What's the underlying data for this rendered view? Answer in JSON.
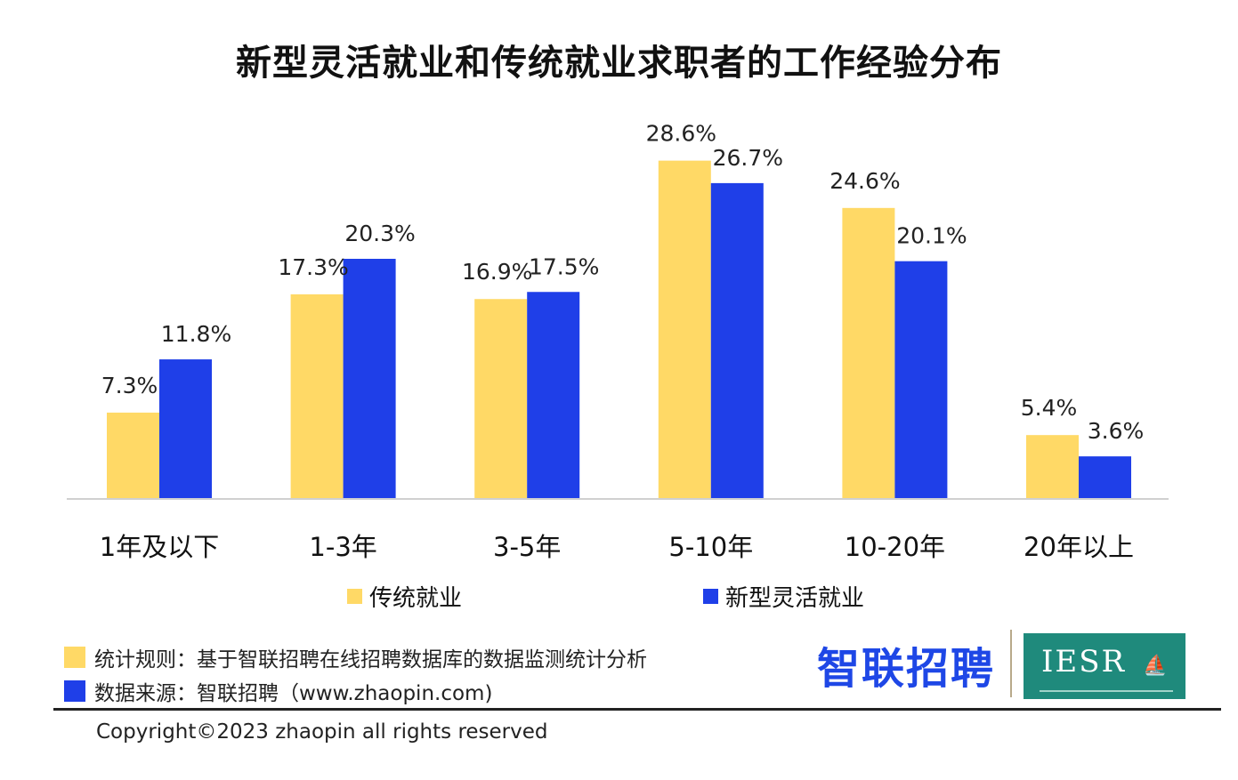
{
  "chart_data": {
    "type": "bar",
    "title": "新型灵活就业和传统就业求职者的工作经验分布",
    "categories": [
      "1年及以下",
      "1-3年",
      "3-5年",
      "5-10年",
      "10-20年",
      "20年以上"
    ],
    "series": [
      {
        "name": "传统就业",
        "color": "#FFD966",
        "values": [
          7.3,
          17.3,
          16.9,
          28.6,
          24.6,
          5.4
        ],
        "labels": [
          "7.3%",
          "17.3%",
          "16.9%",
          "28.6%",
          "24.6%",
          "5.4%"
        ]
      },
      {
        "name": "新型灵活就业",
        "color": "#1F3FE8",
        "values": [
          11.8,
          20.3,
          17.5,
          26.7,
          20.1,
          3.6
        ],
        "labels": [
          "11.8%",
          "20.3%",
          "17.5%",
          "26.7%",
          "20.1%",
          "3.6%"
        ]
      }
    ],
    "xlabel": "",
    "ylabel": "",
    "ylim": [
      0,
      30
    ],
    "grid": false,
    "legend": "bottom-center"
  },
  "notes": {
    "rule_label": "统计规则：基于智联招聘在线招聘数据库的数据监测统计分析",
    "rule_color": "#FFD966",
    "source_label": "数据来源：智联招聘（www.zhaopin.com)",
    "source_color": "#1F3FE8"
  },
  "logos": {
    "zhaopin": "智联招聘",
    "iesr": "IESR",
    "zhaopin_color": "#1E47E6",
    "iesr_bg": "#1F8A7C"
  },
  "footer": {
    "copyright": "Copyright©2023 zhaopin all rights reserved"
  }
}
